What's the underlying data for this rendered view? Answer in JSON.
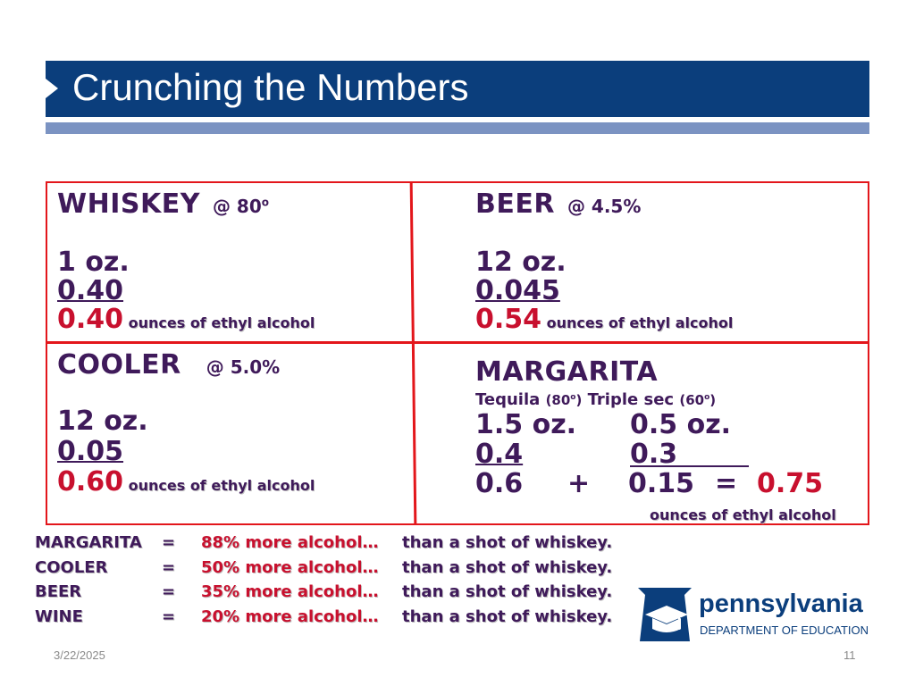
{
  "title": "Crunching the Numbers",
  "cells": {
    "whiskey": {
      "drink": "WHISKEY",
      "strength": "@ 80",
      "strength_sup": "o",
      "amount": "1 oz.",
      "factor": "0.40",
      "result": "0.40",
      "unit": "ounces of ethyl alcohol"
    },
    "beer": {
      "drink": "BEER",
      "strength": "@ 4.5%",
      "amount": "12 oz.",
      "factor": "0.045",
      "result": "0.54",
      "unit": "ounces of ethyl alcohol"
    },
    "cooler": {
      "drink": "COOLER",
      "strength": "@ 5.0%",
      "amount": "12 oz.",
      "factor": "0.05",
      "result": "0.60",
      "unit": "ounces of ethyl alcohol"
    },
    "margarita": {
      "drink": "MARGARITA",
      "ingredient1": "Tequila",
      "ingredient1_proof": "(80",
      "ingredient1_proof_end": ")",
      "ingredient2": "Triple sec",
      "ingredient2_proof": "(60",
      "ingredient2_proof_end": ")",
      "deg": "o",
      "amount1": "1.5 oz.",
      "factor1": "0.4",
      "result1": "0.6",
      "amount2": "0.5 oz.",
      "factor2": "0.3",
      "result2": "0.15",
      "plus": "+",
      "equals": "=",
      "total": "0.75",
      "unit": "ounces of ethyl alcohol"
    }
  },
  "summary": [
    {
      "drink": "MARGARITA",
      "eq": "=",
      "pct": "88% more alcohol…",
      "tail": "than a shot of whiskey."
    },
    {
      "drink": "COOLER",
      "eq": "=",
      "pct": "50% more alcohol…",
      "tail": "than a shot of whiskey."
    },
    {
      "drink": "BEER",
      "eq": "=",
      "pct": "35% more alcohol…",
      "tail": "than a shot of whiskey."
    },
    {
      "drink": "WINE",
      "eq": "=",
      "pct": "20% more alcohol…",
      "tail": "than a shot of whiskey."
    }
  ],
  "logo": {
    "name": "pennsylvania",
    "sub": "DEPARTMENT OF EDUCATION"
  },
  "footer": {
    "date": "3/22/2025",
    "page": "11"
  },
  "colors": {
    "title_bar": "#0b3e7c",
    "title_rule": "#7b93c2",
    "grid_border": "#e3161b",
    "text": "#3f1a5a",
    "accent": "#c8102e"
  }
}
